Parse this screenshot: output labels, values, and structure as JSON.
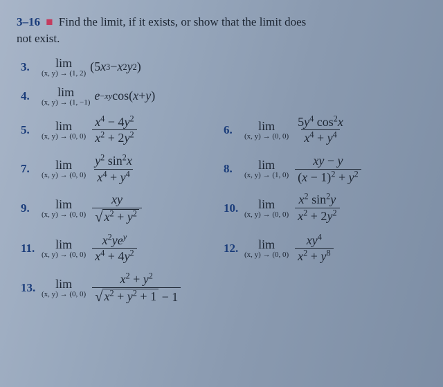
{
  "header": {
    "range": "3–16",
    "bullet": "■",
    "instruction_a": "Find the limit, if it exists, or show that the limit does",
    "instruction_b": "not exist."
  },
  "p3": {
    "num": "3.",
    "lim": "lim",
    "to": "(x, y) → (1, 2)"
  },
  "p4": {
    "num": "4.",
    "lim": "lim",
    "to": "(x, y) → (1, −1)"
  },
  "p5": {
    "num": "5.",
    "lim": "lim",
    "to": "(x, y) → (0, 0)"
  },
  "p6": {
    "num": "6.",
    "lim": "lim",
    "to": "(x, y) → (0, 0)"
  },
  "p7": {
    "num": "7.",
    "lim": "lim",
    "to": "(x, y) → (0, 0)"
  },
  "p8": {
    "num": "8.",
    "lim": "lim",
    "to": "(x, y) → (1, 0)"
  },
  "p9": {
    "num": "9.",
    "lim": "lim",
    "to": "(x, y) → (0, 0)"
  },
  "p10": {
    "num": "10.",
    "lim": "lim",
    "to": "(x, y) → (0, 0)"
  },
  "p11": {
    "num": "11.",
    "lim": "lim",
    "to": "(x, y) → (0, 0)"
  },
  "p12": {
    "num": "12.",
    "lim": "lim",
    "to": "(x, y) → (0, 0)"
  },
  "p13": {
    "num": "13.",
    "lim": "lim",
    "to": "(x, y) → (0, 0)"
  }
}
